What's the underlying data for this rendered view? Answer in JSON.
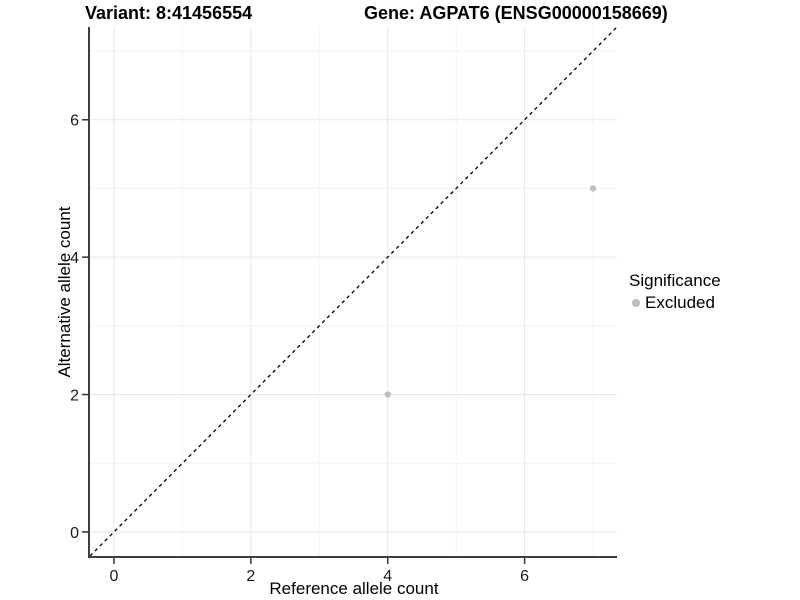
{
  "chart_data": {
    "type": "scatter",
    "title_left": "Variant: 8:41456554",
    "title_right": "Gene: AGPAT6 (ENSG00000158669)",
    "xlabel": "Reference allele count",
    "ylabel": "Alternative allele count",
    "xlim": [
      -0.35,
      7.35
    ],
    "ylim": [
      -0.35,
      7.35
    ],
    "x_major_ticks": [
      0,
      2,
      4,
      6
    ],
    "y_major_ticks": [
      0,
      2,
      4,
      6
    ],
    "x_minor_gridlines": [
      1,
      3,
      5,
      7
    ],
    "y_minor_gridlines": [
      1,
      3,
      5,
      7
    ],
    "grid": true,
    "identity_line": {
      "style": "dashed",
      "from": [
        -0.35,
        -0.35
      ],
      "to": [
        7.35,
        7.35
      ]
    },
    "series": [
      {
        "name": "Excluded",
        "color": "#bebebe",
        "points": [
          {
            "x": 4,
            "y": 2
          },
          {
            "x": 7,
            "y": 5
          }
        ]
      }
    ],
    "legend": {
      "title": "Significance",
      "position": "right",
      "entries": [
        {
          "label": "Excluded",
          "color": "#bebebe"
        }
      ]
    }
  },
  "colors": {
    "background": "#ffffff",
    "grid_major": "#e7e7e7",
    "grid_minor": "#f3f3f3",
    "axis_line": "#3f3f3f",
    "tick_mark": "#333333",
    "tick_label": "#1a1a1a",
    "identity_line": "#000000",
    "point": "#bebebe"
  }
}
